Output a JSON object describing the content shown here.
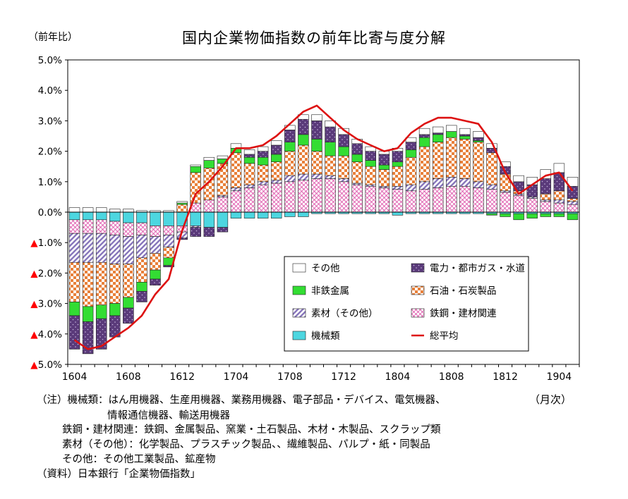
{
  "title": "国内企業物価指数の前年比寄与度分解",
  "unit_label": "（前年比）",
  "x_unit": "（月次）",
  "colors": {
    "sonota": "#ffffff",
    "hitetsu": "#33dd33",
    "sozai": "#8877bb",
    "kikai": "#4dd6e0",
    "denryoku": "#5a3a7a",
    "sekiyu": "#e8803a",
    "tekko": "#e060b0",
    "total_line": "#dd1111"
  },
  "notes": [
    "（注）機械類：はん用機器、生産用機器、業務用機器、電子部品・デバイス、電気機器、",
    "情報通信機器、輸送用機器",
    "鉄鋼・建材関連：鉄鋼、金属製品、窯業・土石製品、木材・木製品、スクラップ類",
    "素材（その他）：化学製品、プラスチック製品、、繊維製品、パルプ・紙・同製品",
    "その他：その他工業製品、鉱産物",
    "（資料）日本銀行「企業物価指数」"
  ],
  "chart_data": {
    "type": "bar",
    "stacked": true,
    "title": "国内企業物価指数の前年比寄与度分解",
    "ylabel": "（前年比）",
    "xlabel": "（月次）",
    "ylim": [
      -5.0,
      5.0
    ],
    "yticks": [
      "5.0%",
      "4.0%",
      "3.0%",
      "2.0%",
      "1.0%",
      "0.0%",
      "▲1.0%",
      "▲2.0%",
      "▲3.0%",
      "▲4.0%",
      "▲5.0%"
    ],
    "xtick_labels": [
      "1604",
      "1608",
      "1612",
      "1704",
      "1708",
      "1712",
      "1804",
      "1808",
      "1812",
      "1904"
    ],
    "legend_position": "lower-right",
    "categories": [
      "1604",
      "1605",
      "1606",
      "1607",
      "1608",
      "1609",
      "1610",
      "1611",
      "1612",
      "1701",
      "1702",
      "1703",
      "1704",
      "1705",
      "1706",
      "1707",
      "1708",
      "1709",
      "1710",
      "1711",
      "1712",
      "1801",
      "1802",
      "1803",
      "1804",
      "1805",
      "1806",
      "1807",
      "1808",
      "1809",
      "1810",
      "1811",
      "1812",
      "1901",
      "1902",
      "1903",
      "1904",
      "1905"
    ],
    "series": [
      {
        "name": "機械類",
        "key": "kikai",
        "values": [
          -0.25,
          -0.25,
          -0.25,
          -0.3,
          -0.35,
          -0.35,
          -0.45,
          -0.45,
          -0.45,
          -0.45,
          -0.5,
          -0.5,
          -0.2,
          -0.2,
          -0.2,
          -0.2,
          -0.15,
          -0.15,
          -0.05,
          -0.05,
          -0.05,
          -0.05,
          -0.05,
          -0.05,
          -0.1,
          -0.05,
          -0.05,
          -0.05,
          -0.05,
          -0.05,
          -0.05,
          -0.05,
          -0.05,
          -0.05,
          -0.05,
          -0.05,
          -0.05,
          -0.05
        ]
      },
      {
        "name": "鉄鋼・建材関連",
        "key": "tekko",
        "values": [
          -0.45,
          -0.45,
          -0.45,
          -0.45,
          -0.45,
          -0.4,
          -0.35,
          -0.3,
          -0.2,
          0.3,
          0.4,
          0.5,
          0.7,
          0.8,
          0.9,
          0.95,
          1.0,
          1.05,
          1.1,
          1.1,
          1.0,
          0.9,
          0.85,
          0.8,
          0.75,
          0.7,
          0.75,
          0.8,
          0.85,
          0.85,
          0.8,
          0.75,
          0.65,
          0.55,
          0.45,
          0.35,
          0.3,
          0.25
        ]
      },
      {
        "name": "素材（その他）",
        "key": "sozai",
        "values": [
          -0.95,
          -0.95,
          -0.95,
          -0.95,
          -0.9,
          -0.75,
          -0.55,
          -0.4,
          -0.2,
          -0.05,
          0.0,
          0.05,
          0.1,
          0.1,
          0.1,
          0.1,
          0.2,
          0.2,
          0.15,
          0.1,
          0.1,
          0.05,
          0.05,
          0.05,
          0.1,
          0.2,
          0.25,
          0.3,
          0.3,
          0.25,
          0.2,
          0.15,
          0.05,
          0.05,
          0.05,
          0.05,
          0.1,
          0.1
        ]
      },
      {
        "name": "石油・石炭製品",
        "key": "sekiyu",
        "values": [
          -1.3,
          -1.45,
          -1.4,
          -1.3,
          -1.1,
          -0.8,
          -0.55,
          -0.35,
          0.25,
          1.0,
          1.05,
          1.05,
          1.15,
          0.7,
          0.55,
          0.6,
          0.8,
          0.95,
          0.75,
          0.65,
          0.75,
          0.7,
          0.6,
          0.55,
          0.65,
          0.9,
          1.15,
          1.2,
          1.3,
          1.3,
          1.3,
          1.05,
          0.55,
          0.1,
          0.0,
          0.2,
          0.3,
          0.1
        ]
      },
      {
        "name": "非鉄金属",
        "key": "hitetsu",
        "values": [
          -0.45,
          -0.5,
          -0.45,
          -0.4,
          -0.35,
          -0.3,
          -0.3,
          -0.25,
          0.05,
          0.2,
          0.25,
          0.15,
          0.15,
          0.2,
          0.25,
          0.25,
          0.3,
          0.35,
          0.4,
          0.45,
          0.3,
          0.25,
          0.2,
          0.15,
          0.15,
          0.25,
          0.3,
          0.25,
          0.2,
          0.1,
          0.05,
          -0.05,
          -0.1,
          -0.2,
          -0.15,
          -0.1,
          -0.1,
          -0.2
        ]
      },
      {
        "name": "電力・都市ガス・水道",
        "key": "denryoku",
        "values": [
          -1.1,
          -1.05,
          -1.0,
          -0.7,
          -0.5,
          -0.35,
          -0.2,
          -0.05,
          -0.05,
          -0.3,
          -0.3,
          -0.15,
          0.0,
          0.1,
          0.2,
          0.3,
          0.4,
          0.5,
          0.6,
          0.5,
          0.4,
          0.35,
          0.3,
          0.35,
          0.35,
          0.25,
          0.1,
          0.05,
          0.0,
          0.05,
          0.1,
          0.15,
          0.25,
          0.3,
          0.4,
          0.5,
          0.6,
          0.4
        ]
      },
      {
        "name": "その他",
        "key": "sonota",
        "values": [
          0.15,
          0.15,
          0.15,
          0.1,
          0.1,
          0.05,
          0.05,
          0.05,
          0.05,
          0.05,
          0.1,
          0.1,
          0.15,
          0.15,
          0.15,
          0.15,
          0.15,
          0.15,
          0.2,
          0.2,
          0.2,
          0.15,
          0.15,
          0.1,
          0.1,
          0.15,
          0.2,
          0.2,
          0.2,
          0.2,
          0.2,
          0.15,
          0.15,
          0.2,
          0.25,
          0.3,
          0.3,
          0.3
        ]
      },
      {
        "name": "総平均",
        "key": "total",
        "type": "line",
        "values": [
          -4.2,
          -4.5,
          -4.4,
          -4.1,
          -3.8,
          -3.4,
          -2.7,
          -2.2,
          -0.6,
          0.6,
          1.0,
          1.5,
          2.1,
          2.1,
          2.2,
          2.5,
          2.9,
          3.3,
          3.5,
          3.1,
          2.7,
          2.4,
          2.2,
          2.0,
          2.1,
          2.6,
          2.9,
          3.1,
          3.1,
          3.0,
          2.9,
          2.3,
          1.3,
          0.6,
          0.9,
          1.2,
          1.3,
          0.7
        ]
      }
    ]
  }
}
